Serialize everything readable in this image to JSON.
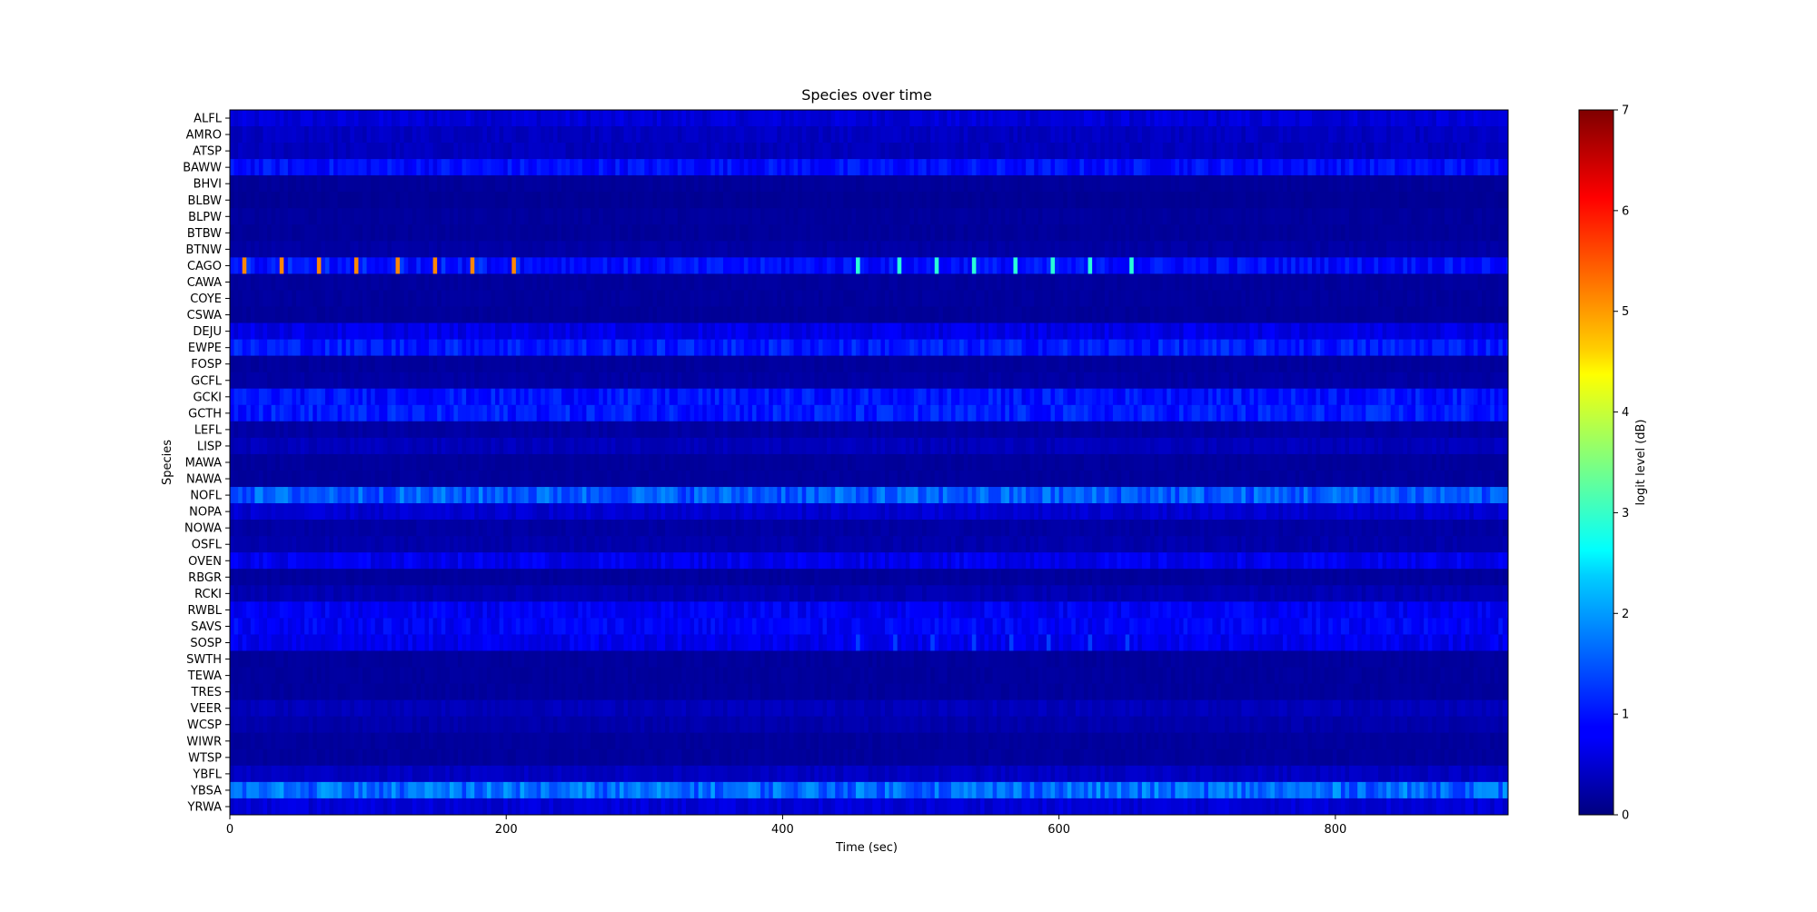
{
  "chart_data": {
    "type": "heatmap",
    "title": "Species over time",
    "xlabel": "Time (sec)",
    "ylabel": "Species",
    "xlim": [
      0,
      925
    ],
    "x_ticks": [
      0,
      200,
      400,
      600,
      800
    ],
    "grid": false,
    "colorbar": {
      "label": "logit level (dB)",
      "range": [
        0,
        7
      ],
      "ticks": [
        0,
        1,
        2,
        3,
        4,
        5,
        6,
        7
      ],
      "colormap": "jet"
    },
    "species": [
      "ALFL",
      "AMRO",
      "ATSP",
      "BAWW",
      "BHVI",
      "BLBW",
      "BLPW",
      "BTBW",
      "BTNW",
      "CAGO",
      "CAWA",
      "COYE",
      "CSWA",
      "DEJU",
      "EWPE",
      "FOSP",
      "GCFL",
      "GCKI",
      "GCTH",
      "LEFL",
      "LISP",
      "MAWA",
      "NAWA",
      "NOFL",
      "NOPA",
      "NOWA",
      "OSFL",
      "OVEN",
      "RBGR",
      "RCKI",
      "RWBL",
      "SAVS",
      "SOSP",
      "SWTH",
      "TEWA",
      "TRES",
      "VEER",
      "WCSP",
      "WIWR",
      "WTSP",
      "YBFL",
      "YBSA",
      "YRWA"
    ],
    "time_step_sec": 3,
    "typical_levels": [
      0.6,
      0.45,
      0.42,
      0.95,
      0.18,
      0.15,
      0.2,
      0.18,
      0.25,
      0.95,
      0.2,
      0.2,
      0.18,
      0.7,
      1.05,
      0.2,
      0.25,
      1.0,
      1.05,
      0.25,
      0.4,
      0.2,
      0.2,
      1.5,
      0.55,
      0.25,
      0.3,
      0.75,
      0.2,
      0.35,
      0.8,
      0.85,
      0.75,
      0.2,
      0.2,
      0.2,
      0.4,
      0.3,
      0.2,
      0.2,
      0.45,
      1.6,
      0.6
    ],
    "peaks": [
      {
        "species": "CAGO",
        "times": [
          9,
          37,
          65,
          92,
          120,
          148,
          176,
          204
        ],
        "level": 5.2
      },
      {
        "species": "CAGO",
        "times": [
          14,
          42,
          70,
          97,
          125,
          153,
          181,
          209
        ],
        "level": 1.3
      },
      {
        "species": "CAGO",
        "times": [
          455,
          483,
          511,
          539,
          567,
          595,
          623,
          651
        ],
        "level": 2.9
      },
      {
        "species": "SOSP",
        "times": [
          453,
          481,
          509,
          537,
          565,
          593,
          621,
          649
        ],
        "level": 1.3
      },
      {
        "species": "YBSA",
        "times": [
          38,
          66,
          160,
          188,
          210
        ],
        "level": 2.0
      }
    ]
  }
}
